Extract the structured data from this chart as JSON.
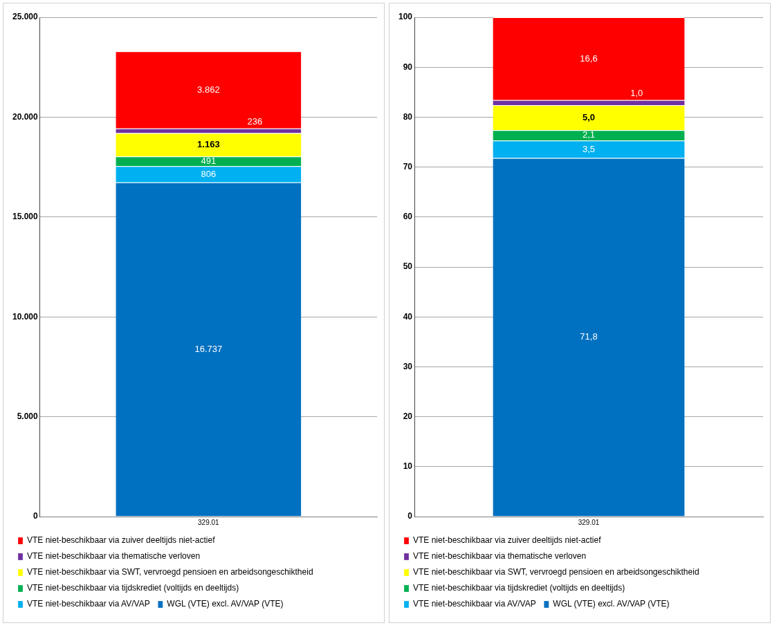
{
  "chart_data": [
    {
      "type": "bar",
      "stacked": true,
      "categories": [
        "329.01"
      ],
      "grid": "y",
      "legend": "bottom",
      "ylim": [
        0,
        25000
      ],
      "yticks": [
        {
          "value": 0,
          "label": "0"
        },
        {
          "value": 5000,
          "label": "5.000"
        },
        {
          "value": 10000,
          "label": "10.000"
        },
        {
          "value": 15000,
          "label": "15.000"
        },
        {
          "value": 20000,
          "label": "20.000"
        },
        {
          "value": 25000,
          "label": "25.000"
        }
      ],
      "series": [
        {
          "name": "WGL (VTE) excl. AV/VAP (VTE)",
          "color": "#0070c0",
          "values": [
            16737
          ],
          "value_labels": [
            "16.737"
          ]
        },
        {
          "name": "VTE niet-beschikbaar via AV/VAP",
          "color": "#00b0f0",
          "values": [
            806
          ],
          "value_labels": [
            "806"
          ]
        },
        {
          "name": "VTE niet-beschikbaar via tijdskrediet (voltijds en deeltijds)",
          "color": "#00b050",
          "values": [
            491
          ],
          "value_labels": [
            "491"
          ]
        },
        {
          "name": "VTE niet-beschikbaar via SWT, vervroegd pensioen en arbeidsongeschiktheid",
          "color": "#ffff00",
          "values": [
            1163
          ],
          "value_labels": [
            "1.163"
          ]
        },
        {
          "name": "VTE niet-beschikbaar via thematische verloven",
          "color": "#7030a0",
          "values": [
            236
          ],
          "value_labels": [
            "236"
          ]
        },
        {
          "name": "VTE niet-beschikbaar via zuiver deeltijds niet-actief",
          "color": "#ff0000",
          "values": [
            3862
          ],
          "value_labels": [
            "3.862"
          ]
        }
      ]
    },
    {
      "type": "bar",
      "stacked": true,
      "categories": [
        "329.01"
      ],
      "grid": "y",
      "legend": "bottom",
      "ylim": [
        0,
        100
      ],
      "yticks": [
        0,
        10,
        20,
        30,
        40,
        50,
        60,
        70,
        80,
        90,
        100
      ],
      "series": [
        {
          "name": "WGL (VTE) excl. AV/VAP (VTE)",
          "color": "#0070c0",
          "values": [
            71.8
          ],
          "value_labels": [
            "71,8"
          ]
        },
        {
          "name": "VTE niet-beschikbaar via AV/VAP",
          "color": "#00b0f0",
          "values": [
            3.5
          ],
          "value_labels": [
            "3,5"
          ]
        },
        {
          "name": "VTE niet-beschikbaar via tijdskrediet (voltijds en deeltijds)",
          "color": "#00b050",
          "values": [
            2.1
          ],
          "value_labels": [
            "2,1"
          ]
        },
        {
          "name": "VTE niet-beschikbaar via SWT, vervroegd pensioen en arbeidsongeschiktheid",
          "color": "#ffff00",
          "values": [
            5.0
          ],
          "value_labels": [
            "5,0"
          ]
        },
        {
          "name": "VTE niet-beschikbaar via thematische verloven",
          "color": "#7030a0",
          "values": [
            1.0
          ],
          "value_labels": [
            "1,0"
          ]
        },
        {
          "name": "VTE niet-beschikbaar via zuiver deeltijds niet-actief",
          "color": "#ff0000",
          "values": [
            16.6
          ],
          "value_labels": [
            "16,6"
          ]
        }
      ]
    }
  ]
}
